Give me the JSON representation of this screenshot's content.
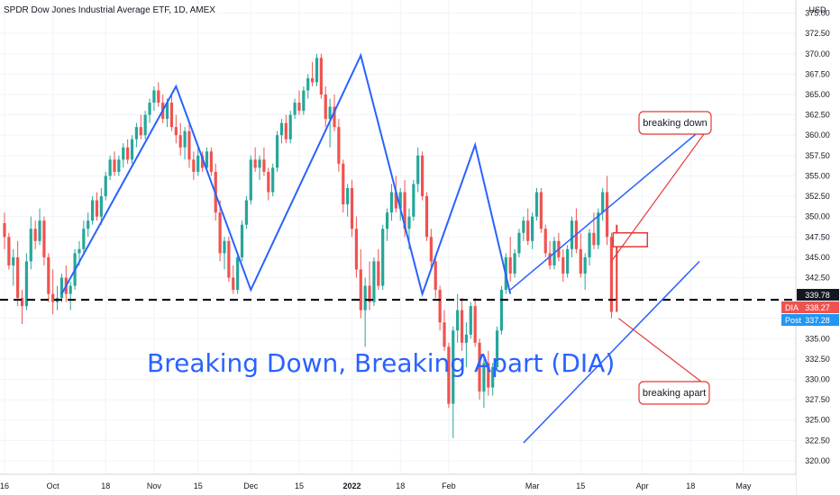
{
  "header": {
    "title": "SPDR Dow Jones Industrial Average ETF, 1D, AMEX"
  },
  "annotations": {
    "main_title": "Breaking Down, Breaking Apart (DIA)",
    "callout_down": "breaking down",
    "callout_apart": "breaking apart"
  },
  "price_tags": {
    "level": "339.78",
    "dia_label": "DIA",
    "dia_value": "338.27",
    "post_label": "Post",
    "post_value": "337.28"
  },
  "colors": {
    "up": "#26a69a",
    "down": "#ef5350",
    "trend": "#2962ff",
    "callout": "#e53935",
    "dashed": "#000000",
    "post_tag": "#2196f3",
    "level_tag": "#131722"
  },
  "chart_data": {
    "type": "candlestick",
    "title": "SPDR Dow Jones Industrial Average ETF, 1D, AMEX",
    "currency_label": "USD",
    "ylim": [
      319,
      376.5
    ],
    "y_ticks": [
      "320.00",
      "322.50",
      "325.00",
      "327.50",
      "330.00",
      "332.50",
      "335.00",
      "337.50",
      "340.00",
      "342.50",
      "345.00",
      "347.50",
      "350.00",
      "352.50",
      "355.00",
      "357.50",
      "360.00",
      "362.50",
      "365.00",
      "367.50",
      "370.00",
      "372.50",
      "375.00"
    ],
    "x_ticks": [
      {
        "label": "16",
        "i": 0,
        "bold": false
      },
      {
        "label": "Oct",
        "i": 11,
        "bold": false
      },
      {
        "label": "18",
        "i": 23,
        "bold": false
      },
      {
        "label": "Nov",
        "i": 34,
        "bold": false
      },
      {
        "label": "15",
        "i": 44,
        "bold": false
      },
      {
        "label": "Dec",
        "i": 56,
        "bold": false
      },
      {
        "label": "15",
        "i": 67,
        "bold": false
      },
      {
        "label": "2022",
        "i": 79,
        "bold": true
      },
      {
        "label": "18",
        "i": 90,
        "bold": false
      },
      {
        "label": "Feb",
        "i": 101,
        "bold": false
      },
      {
        "label": "Mar",
        "i": 120,
        "bold": false
      },
      {
        "label": "15",
        "i": 131,
        "bold": false
      },
      {
        "label": "Apr",
        "i": 145,
        "bold": false
      },
      {
        "label": "18",
        "i": 156,
        "bold": false
      },
      {
        "label": "May",
        "i": 168,
        "bold": false
      }
    ],
    "support_level": 339.78,
    "zigzag": [
      [
        13,
        340.5
      ],
      [
        39,
        366
      ],
      [
        56,
        341
      ],
      [
        81,
        369.8
      ],
      [
        95,
        340.5
      ],
      [
        107,
        358.8
      ],
      [
        115,
        340.5
      ]
    ],
    "channel_upper": [
      [
        115,
        341
      ],
      [
        158,
        360.5
      ]
    ],
    "channel_lower": [
      [
        118,
        322.2
      ],
      [
        158,
        344.5
      ]
    ],
    "candles": [
      [
        349.2,
        350.5,
        346.0,
        347.5
      ],
      [
        347.5,
        348.0,
        343.5,
        344.0
      ],
      [
        344.0,
        346.0,
        341.5,
        345.0
      ],
      [
        345.0,
        347.0,
        339.0,
        340.0
      ],
      [
        340.0,
        341.0,
        336.8,
        339.0
      ],
      [
        339.0,
        345.5,
        338.5,
        344.5
      ],
      [
        344.5,
        350.0,
        343.5,
        348.5
      ],
      [
        348.5,
        349.5,
        346.0,
        347.0
      ],
      [
        347.0,
        351.0,
        346.5,
        349.5
      ],
      [
        349.5,
        350.0,
        344.0,
        345.0
      ],
      [
        345.0,
        345.5,
        339.5,
        340.5
      ],
      [
        340.5,
        343.5,
        338.0,
        339.5
      ],
      [
        339.5,
        341.5,
        338.5,
        340.0
      ],
      [
        340.0,
        343.0,
        339.5,
        342.5
      ],
      [
        342.5,
        344.0,
        339.5,
        340.5
      ],
      [
        340.5,
        342.0,
        338.5,
        341.5
      ],
      [
        341.5,
        346.0,
        341.0,
        345.5
      ],
      [
        345.5,
        347.0,
        344.0,
        346.0
      ],
      [
        346.0,
        349.5,
        345.5,
        348.5
      ],
      [
        348.5,
        350.5,
        347.5,
        349.5
      ],
      [
        349.5,
        352.5,
        349.0,
        352.0
      ],
      [
        352.0,
        353.0,
        349.5,
        350.0
      ],
      [
        350.0,
        353.5,
        349.0,
        352.5
      ],
      [
        352.5,
        355.5,
        352.0,
        355.0
      ],
      [
        355.0,
        357.5,
        354.5,
        357.0
      ],
      [
        357.0,
        358.0,
        355.0,
        355.5
      ],
      [
        355.5,
        357.5,
        355.0,
        357.0
      ],
      [
        357.0,
        359.0,
        356.0,
        358.5
      ],
      [
        358.5,
        359.5,
        356.5,
        357.0
      ],
      [
        357.0,
        360.0,
        356.5,
        359.5
      ],
      [
        359.5,
        361.5,
        358.5,
        361.0
      ],
      [
        361.0,
        362.5,
        359.5,
        360.0
      ],
      [
        360.0,
        363.0,
        359.5,
        362.5
      ],
      [
        362.5,
        364.5,
        361.5,
        364.0
      ],
      [
        364.0,
        366.0,
        363.0,
        365.5
      ],
      [
        365.5,
        366.5,
        363.5,
        364.0
      ],
      [
        364.0,
        365.0,
        361.5,
        362.0
      ],
      [
        362.0,
        364.5,
        361.0,
        364.0
      ],
      [
        364.0,
        365.0,
        360.5,
        361.0
      ],
      [
        361.0,
        362.5,
        359.0,
        360.0
      ],
      [
        360.0,
        361.5,
        357.5,
        358.5
      ],
      [
        358.5,
        361.0,
        357.0,
        360.5
      ],
      [
        360.5,
        361.5,
        356.0,
        357.0
      ],
      [
        357.0,
        358.0,
        354.5,
        355.5
      ],
      [
        355.5,
        358.5,
        355.0,
        357.5
      ],
      [
        357.5,
        358.0,
        355.5,
        356.0
      ],
      [
        356.0,
        358.5,
        355.5,
        358.0
      ],
      [
        358.0,
        358.5,
        355.0,
        355.5
      ],
      [
        355.5,
        356.5,
        349.5,
        350.5
      ],
      [
        350.5,
        352.0,
        344.5,
        345.5
      ],
      [
        345.5,
        347.5,
        343.5,
        347.0
      ],
      [
        347.0,
        347.5,
        342.0,
        342.5
      ],
      [
        342.5,
        344.0,
        340.5,
        341.0
      ],
      [
        341.0,
        345.5,
        340.5,
        345.0
      ],
      [
        345.0,
        349.5,
        344.5,
        349.0
      ],
      [
        349.0,
        352.5,
        348.5,
        352.0
      ],
      [
        352.0,
        357.5,
        351.5,
        357.0
      ],
      [
        357.0,
        358.5,
        355.5,
        356.0
      ],
      [
        356.0,
        357.5,
        354.5,
        357.0
      ],
      [
        357.0,
        358.5,
        355.0,
        355.5
      ],
      [
        355.5,
        356.0,
        352.0,
        353.0
      ],
      [
        353.0,
        356.5,
        352.5,
        356.0
      ],
      [
        356.0,
        360.5,
        355.5,
        360.0
      ],
      [
        360.0,
        362.0,
        359.0,
        361.5
      ],
      [
        361.5,
        362.5,
        359.0,
        359.5
      ],
      [
        359.5,
        363.0,
        359.0,
        362.5
      ],
      [
        362.5,
        364.5,
        362.0,
        364.0
      ],
      [
        364.0,
        365.5,
        362.5,
        363.0
      ],
      [
        363.0,
        366.0,
        362.5,
        365.5
      ],
      [
        365.5,
        367.5,
        364.5,
        367.0
      ],
      [
        367.0,
        369.0,
        366.0,
        366.5
      ],
      [
        366.5,
        370.0,
        366.0,
        369.5
      ],
      [
        369.5,
        370.0,
        364.5,
        365.0
      ],
      [
        365.0,
        366.0,
        361.0,
        362.0
      ],
      [
        362.0,
        364.5,
        358.5,
        363.5
      ],
      [
        363.5,
        365.0,
        360.5,
        361.0
      ],
      [
        361.0,
        362.0,
        355.5,
        356.5
      ],
      [
        356.5,
        357.0,
        350.5,
        351.5
      ],
      [
        351.5,
        354.0,
        350.0,
        353.5
      ],
      [
        353.5,
        354.5,
        347.5,
        348.5
      ],
      [
        348.5,
        350.0,
        342.5,
        343.5
      ],
      [
        343.5,
        346.0,
        337.5,
        338.5
      ],
      [
        338.5,
        342.5,
        334.0,
        341.5
      ],
      [
        341.5,
        344.5,
        338.5,
        339.5
      ],
      [
        339.5,
        345.0,
        339.0,
        344.5
      ],
      [
        344.5,
        346.0,
        341.0,
        341.5
      ],
      [
        341.5,
        349.0,
        341.0,
        348.5
      ],
      [
        348.5,
        351.0,
        347.0,
        350.5
      ],
      [
        350.5,
        354.0,
        349.5,
        353.0
      ],
      [
        353.0,
        355.0,
        350.5,
        351.0
      ],
      [
        351.0,
        353.5,
        349.5,
        353.0
      ],
      [
        353.0,
        354.5,
        347.5,
        348.5
      ],
      [
        348.5,
        351.0,
        346.0,
        350.0
      ],
      [
        350.0,
        354.5,
        349.5,
        354.0
      ],
      [
        354.0,
        358.5,
        353.0,
        357.5
      ],
      [
        357.5,
        358.0,
        352.0,
        352.5
      ],
      [
        352.5,
        353.0,
        347.0,
        347.5
      ],
      [
        347.5,
        348.5,
        343.5,
        344.5
      ],
      [
        344.5,
        345.0,
        340.0,
        341.0
      ],
      [
        341.0,
        341.5,
        336.0,
        337.0
      ],
      [
        337.0,
        338.5,
        333.5,
        334.0
      ],
      [
        334.0,
        334.5,
        326.5,
        327.0
      ],
      [
        327.0,
        336.5,
        322.8,
        336.0
      ],
      [
        336.0,
        340.5,
        334.5,
        338.5
      ],
      [
        338.5,
        340.0,
        333.5,
        334.5
      ],
      [
        334.5,
        337.0,
        331.5,
        335.5
      ],
      [
        335.5,
        339.5,
        335.0,
        339.0
      ],
      [
        339.0,
        340.0,
        334.0,
        334.5
      ],
      [
        334.5,
        335.0,
        327.5,
        328.5
      ],
      [
        328.5,
        332.5,
        326.5,
        332.0
      ],
      [
        332.0,
        333.5,
        328.0,
        329.0
      ],
      [
        329.0,
        332.0,
        328.0,
        331.5
      ],
      [
        331.5,
        336.5,
        331.0,
        336.0
      ],
      [
        336.0,
        341.5,
        335.5,
        341.0
      ],
      [
        341.0,
        345.5,
        340.5,
        345.0
      ],
      [
        345.0,
        347.5,
        342.0,
        343.0
      ],
      [
        343.0,
        346.0,
        342.5,
        345.5
      ],
      [
        345.5,
        348.5,
        345.0,
        348.0
      ],
      [
        348.0,
        350.0,
        347.0,
        349.5
      ],
      [
        349.5,
        351.0,
        346.5,
        347.0
      ],
      [
        347.0,
        350.5,
        346.0,
        350.0
      ],
      [
        350.0,
        353.5,
        349.5,
        353.0
      ],
      [
        353.0,
        353.5,
        348.0,
        348.5
      ],
      [
        348.5,
        349.0,
        345.0,
        345.5
      ],
      [
        345.5,
        347.0,
        343.5,
        344.0
      ],
      [
        344.0,
        347.5,
        343.5,
        347.0
      ],
      [
        347.0,
        348.0,
        344.5,
        345.0
      ],
      [
        345.0,
        346.0,
        342.0,
        343.0
      ],
      [
        343.0,
        346.5,
        342.5,
        346.0
      ],
      [
        346.0,
        350.0,
        345.0,
        349.5
      ],
      [
        349.5,
        351.0,
        345.5,
        346.0
      ],
      [
        346.0,
        348.0,
        342.5,
        343.0
      ],
      [
        343.0,
        345.5,
        341.0,
        345.0
      ],
      [
        345.0,
        348.5,
        344.0,
        348.0
      ],
      [
        348.0,
        350.5,
        346.0,
        346.5
      ],
      [
        346.5,
        351.0,
        346.0,
        350.5
      ],
      [
        350.5,
        353.5,
        349.5,
        353.0
      ],
      [
        353.0,
        355.0,
        346.5,
        347.5
      ],
      [
        347.5,
        348.0,
        337.5,
        338.3
      ]
    ]
  }
}
